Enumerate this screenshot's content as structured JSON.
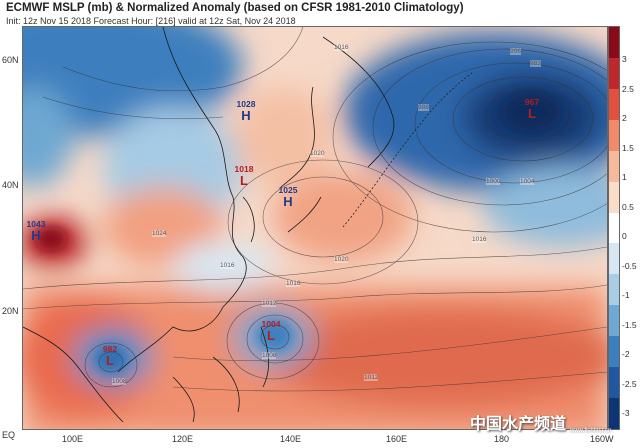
{
  "header": {
    "title": "ECMWF MSLP (mb) & Normalized Anomaly (based on CFSR 1981-2010 Climatology)",
    "subtitle": "Init: 12z Nov 15 2018   Forecast Hour: [216]   valid at 12z Sat, Nov 24 2018"
  },
  "axes": {
    "lat_labels": [
      "60N",
      "40N",
      "20N",
      "EQ"
    ],
    "lon_labels": [
      "100E",
      "120E",
      "140E",
      "160E",
      "180",
      "160W"
    ]
  },
  "colorbar": {
    "labels": [
      "3",
      "2.5",
      "2",
      "1.5",
      "1",
      "0.5",
      "0",
      "-0.5",
      "-1",
      "-1.5",
      "-2",
      "-2.5",
      "-3"
    ],
    "colors": [
      "#8b0a1a",
      "#c0272d",
      "#e0523f",
      "#f08a6a",
      "#f7b99b",
      "#fbdcc8",
      "#ffffff",
      "#d6e6f2",
      "#a9cde6",
      "#6fa9d3",
      "#3c7fbf",
      "#1f57a0",
      "#0d3474"
    ]
  },
  "systems": [
    {
      "value": "1028",
      "letter": "H",
      "type": "high",
      "color": "#223a8c"
    },
    {
      "value": "1018",
      "letter": "L",
      "type": "low",
      "color": "#b41e1e"
    },
    {
      "value": "1025",
      "letter": "H",
      "type": "high",
      "color": "#223a8c"
    },
    {
      "value": "1043",
      "letter": "H",
      "type": "high",
      "color": "#223a8c"
    },
    {
      "value": "982",
      "letter": "L",
      "type": "low",
      "color": "#b41e1e"
    },
    {
      "value": "1004",
      "letter": "L",
      "type": "low",
      "color": "#b41e1e"
    },
    {
      "value": "967",
      "letter": "L",
      "type": "low",
      "color": "#b41e1e"
    }
  ],
  "isobar_labels": [
    "1016",
    "996",
    "983",
    "988",
    "1000",
    "1004",
    "1020",
    "1016",
    "1012",
    "1008",
    "1008",
    "1012",
    "1016",
    "1016",
    "1020",
    "1024"
  ],
  "watermark": {
    "text": "中国水产频道",
    "sub": "www.fishfirst.cn"
  }
}
